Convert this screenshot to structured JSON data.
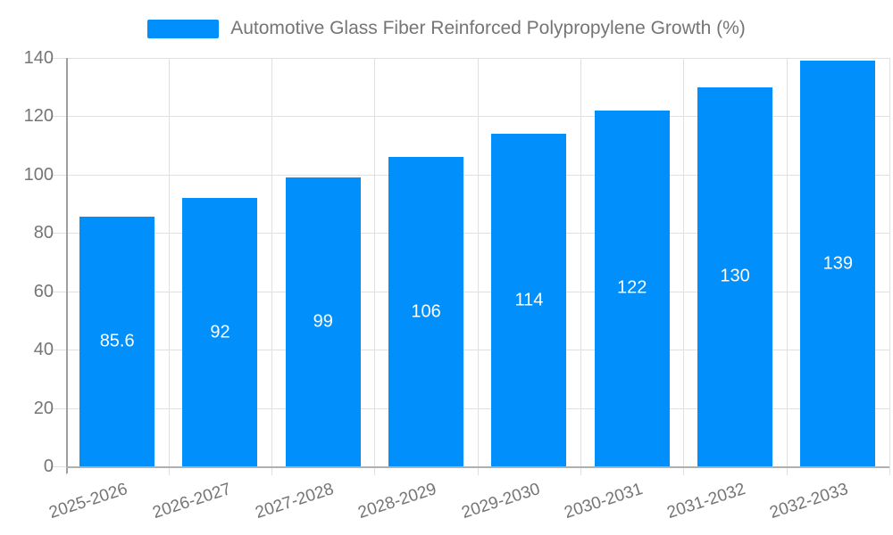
{
  "legend": {
    "label": "Automotive Glass Fiber Reinforced Polypropylene Growth (%)"
  },
  "chart_data": {
    "type": "bar",
    "title": "Automotive Glass Fiber Reinforced Polypropylene Growth (%)",
    "xlabel": "",
    "ylabel": "",
    "categories": [
      "2025-2026",
      "2026-2027",
      "2027-2028",
      "2028-2029",
      "2029-2030",
      "2030-2031",
      "2031-2032",
      "2032-2033"
    ],
    "values": [
      85.6,
      92,
      99,
      106,
      114,
      122,
      130,
      139
    ],
    "value_labels": [
      "85.6",
      "92",
      "99",
      "106",
      "114",
      "122",
      "130",
      "139"
    ],
    "ylim": [
      0,
      140
    ],
    "yticks": [
      0,
      20,
      40,
      60,
      80,
      100,
      120,
      140
    ],
    "grid": true,
    "legend_position": "top",
    "colors": {
      "bar": "#008FFB",
      "grid": "#e0e0e0",
      "axis": "#9e9e9e",
      "tick_text": "#757575",
      "legend_text": "#757575",
      "data_label": "#ffffff",
      "background": "#ffffff"
    }
  }
}
